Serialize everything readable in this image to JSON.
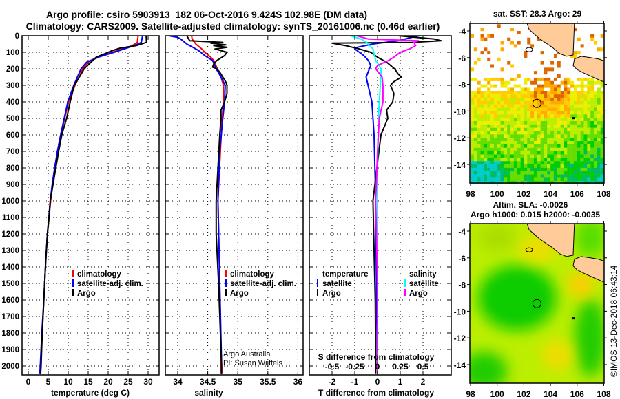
{
  "title": {
    "line1": "Argo profile: csiro 5903913_182 06-Oct-2016 9.424S 102.98E (DM data)",
    "line2": "Climatology: CARS2009. Satellite-adjusted climatology: synTS_20161006.nc (0.46d earlier)"
  },
  "colors": {
    "climatology": "#ff0000",
    "satellite": "#0000ff",
    "argo": "#000000",
    "sal_sat": "#00ffff",
    "sal_argo": "#ff00ff",
    "land": "#ffcc99"
  },
  "credits": {
    "line1": "Argo Australia",
    "line2": "PI: Susan Wijffels",
    "watermark": "©IMOS 13-Dec-2018 06:43:14"
  },
  "chart_data": [
    {
      "type": "line",
      "name": "temperature",
      "xlabel": "temperature (deg C)",
      "ylabel": "",
      "xlim": [
        -1.5,
        32.7
      ],
      "ylim": [
        2045,
        0
      ],
      "xticks": [
        "0",
        "5",
        "10",
        "15",
        "20",
        "25",
        "30"
      ],
      "xtick_values": [
        0,
        5,
        10,
        15,
        20,
        25,
        30
      ],
      "yticks": [
        "0",
        "100",
        "200",
        "300",
        "400",
        "500",
        "600",
        "700",
        "800",
        "900",
        "1000",
        "1100",
        "1200",
        "1300",
        "1400",
        "1500",
        "1600",
        "1700",
        "1800",
        "1900",
        "2000"
      ],
      "legend": [
        "climatology",
        "satellite-adj. clim.",
        "Argo"
      ],
      "series": [
        {
          "name": "climatology",
          "color": "#ff0000",
          "depth": [
            0,
            40,
            60,
            80,
            100,
            130,
            160,
            200,
            250,
            300,
            400,
            500,
            600,
            700,
            800,
            900,
            1000,
            1200,
            1400,
            1600,
            1800,
            2000,
            2045
          ],
          "values": [
            27.5,
            27.3,
            26,
            23.5,
            21,
            17.5,
            15,
            13.6,
            12.7,
            11.7,
            10.1,
            9.1,
            8.2,
            7.4,
            6.7,
            6.1,
            5.6,
            4.8,
            4.3,
            3.9,
            3.5,
            3.1,
            3.0
          ]
        },
        {
          "name": "satellite-adj. clim.",
          "color": "#0000ff",
          "depth": [
            0,
            40,
            60,
            80,
            100,
            130,
            160,
            200,
            250,
            300,
            400,
            500,
            600,
            700,
            800,
            900,
            1000,
            1200,
            1400,
            1600,
            1800,
            2000,
            2045
          ],
          "values": [
            28.6,
            28.3,
            26.5,
            24,
            21.5,
            17.5,
            14.6,
            13.2,
            12.3,
            11.4,
            9.9,
            9.0,
            8.1,
            7.3,
            6.6,
            6.0,
            5.5,
            4.8,
            4.3,
            3.9,
            3.4,
            3.0,
            2.9
          ]
        },
        {
          "name": "Argo",
          "color": "#000000",
          "depth": [
            0,
            40,
            60,
            75,
            90,
            100,
            130,
            170,
            200,
            250,
            300,
            400,
            500,
            600,
            700,
            800,
            900,
            1000,
            1100,
            1200,
            1400,
            1600,
            1800,
            2000,
            2045
          ],
          "values": [
            29.5,
            29.6,
            27,
            23,
            21,
            20,
            17,
            15.3,
            14,
            12.8,
            11.5,
            10.5,
            9.6,
            8.4,
            7.6,
            6.9,
            6.2,
            5.5,
            5.2,
            4.8,
            4.3,
            3.9,
            3.5,
            3.2,
            3.1
          ]
        }
      ]
    },
    {
      "type": "line",
      "name": "salinity",
      "xlabel": "salinity",
      "xlim": [
        33.79,
        36.08
      ],
      "ylim": [
        2045,
        0
      ],
      "xticks": [
        "34",
        "34.5",
        "35",
        "35.5",
        "36"
      ],
      "xtick_values": [
        34,
        34.5,
        35,
        35.5,
        36
      ],
      "legend": [
        "climatology",
        "satellite-adj. clim.",
        "Argo"
      ],
      "series": [
        {
          "name": "climatology",
          "color": "#ff0000",
          "depth": [
            0,
            20,
            50,
            80,
            100,
            130,
            150,
            200,
            250,
            300,
            400,
            500,
            700,
            1000,
            1500,
            2000,
            2045
          ],
          "values": [
            34.23,
            34.24,
            34.3,
            34.4,
            34.45,
            34.55,
            34.6,
            34.66,
            34.72,
            34.76,
            34.76,
            34.74,
            34.71,
            34.67,
            34.7,
            34.72,
            34.72
          ]
        },
        {
          "name": "satellite-adj. clim.",
          "color": "#0000ff",
          "depth": [
            0,
            10,
            20,
            50,
            70,
            90,
            120,
            150,
            200,
            250,
            300,
            400,
            500,
            700,
            1000,
            1500,
            2000,
            2045
          ],
          "values": [
            33.85,
            34.0,
            34.05,
            34.15,
            34.25,
            34.35,
            34.45,
            34.58,
            34.64,
            34.72,
            34.79,
            34.78,
            34.75,
            34.7,
            34.67,
            34.7,
            34.73,
            34.73
          ]
        },
        {
          "name": "Argo",
          "color": "#000000",
          "depth": [
            0,
            30,
            40,
            45,
            55,
            60,
            70,
            80,
            100,
            120,
            150,
            170,
            190,
            200,
            220,
            250,
            280,
            300,
            350,
            400,
            450,
            500,
            600,
            800,
            1000,
            1200,
            1500,
            1800,
            2000,
            2045
          ],
          "values": [
            34.15,
            34.2,
            34.75,
            34.55,
            34.8,
            34.6,
            34.82,
            34.62,
            34.82,
            34.78,
            34.65,
            34.6,
            34.58,
            34.65,
            34.7,
            34.75,
            34.8,
            34.82,
            34.82,
            34.78,
            34.72,
            34.72,
            34.7,
            34.67,
            34.64,
            34.64,
            34.68,
            34.71,
            34.73,
            34.73
          ]
        }
      ]
    },
    {
      "type": "line",
      "name": "difference",
      "xlabel": "T difference from climatology",
      "xlabel2": "S difference from climatology",
      "xlim": [
        -3.0,
        3.2
      ],
      "ylim": [
        2045,
        0
      ],
      "xticks": [
        "-2",
        "-1",
        "0",
        "1",
        "2"
      ],
      "xtick_values": [
        -2,
        -1,
        0,
        1,
        2
      ],
      "xticks2": [
        "-0.5",
        "-0.25",
        "0",
        "0.25",
        "0.5"
      ],
      "xtick2_values": [
        -0.5,
        -0.25,
        0,
        0.25,
        0.5
      ],
      "legend_t": {
        "title": "temperature",
        "items": [
          "satellite",
          "Argo"
        ]
      },
      "legend_s": {
        "title": "salinity",
        "items": [
          "satellite",
          "Argo"
        ]
      },
      "series": [
        {
          "name": "T satellite",
          "color": "#0000ff",
          "depth": [
            0,
            30,
            50,
            70,
            80,
            100,
            120,
            150,
            180,
            250,
            400,
            600,
            1000,
            1500,
            2045
          ],
          "values": [
            1.8,
            0.9,
            -0.2,
            -0.9,
            -1.0,
            -0.8,
            -0.6,
            -0.4,
            -0.3,
            -0.5,
            -0.25,
            -0.15,
            -0.08,
            -0.05,
            0.0
          ]
        },
        {
          "name": "T Argo",
          "color": "#000000",
          "depth": [
            0,
            20,
            30,
            40,
            45,
            60,
            80,
            100,
            130,
            160,
            200,
            230,
            250,
            280,
            300,
            350,
            400,
            450,
            500,
            600,
            700,
            1000,
            1300,
            1600,
            2000,
            2045
          ],
          "values": [
            0.9,
            2.5,
            2.8,
            1.5,
            -2.0,
            -1.4,
            -0.8,
            -0.3,
            0.0,
            0.4,
            0.75,
            0.9,
            1.05,
            0.7,
            0.57,
            0.72,
            0.67,
            0.4,
            0.45,
            0.15,
            0.06,
            -0.2,
            -0.15,
            -0.1,
            -0.08,
            -0.08
          ]
        },
        {
          "name": "S satellite",
          "color": "#00ffff",
          "depth": [
            0,
            20,
            40,
            80,
            150,
            200,
            300,
            500,
            800,
            1200,
            2045
          ],
          "values": [
            -0.3,
            -0.18,
            -0.12,
            -0.05,
            -0.02,
            0.04,
            0.03,
            0.01,
            0.0,
            0.0,
            0.0
          ]
        },
        {
          "name": "S Argo",
          "color": "#ff00ff",
          "depth": [
            0,
            20,
            30,
            40,
            60,
            80,
            100,
            130,
            150,
            180,
            200,
            250,
            300,
            400,
            500,
            700,
            1000,
            1500,
            2045
          ],
          "values": [
            -0.23,
            -0.1,
            0.45,
            0.4,
            0.42,
            0.35,
            0.25,
            0.18,
            0.12,
            0.0,
            -0.02,
            0.05,
            0.06,
            0.06,
            0.02,
            0.0,
            -0.02,
            0.0,
            0.0
          ]
        }
      ]
    },
    {
      "type": "heatmap",
      "name": "sst-map",
      "title": "sat. SST: 28.3 Argo: 29",
      "xlim": [
        98,
        108
      ],
      "ylim": [
        -15.4,
        -3.43
      ],
      "xticks": [
        "98",
        "100",
        "102",
        "104",
        "106",
        "108"
      ],
      "xtick_values": [
        98,
        100,
        102,
        104,
        106,
        108
      ],
      "yticks": [
        "-4",
        "-6",
        "-8",
        "-10",
        "-12",
        "-14"
      ],
      "ytick_values": [
        -4,
        -6,
        -8,
        -10,
        -12,
        -14
      ],
      "marker": {
        "lon": 102.98,
        "lat": -9.424
      }
    },
    {
      "type": "heatmap",
      "name": "sla-map",
      "title": "Altim. SLA: -0.0026",
      "subtitle": "Argo h1000: 0.015 h2000: -0.0035",
      "xlim": [
        98,
        108
      ],
      "ylim": [
        -15.4,
        -3.43
      ],
      "xticks": [
        "98",
        "100",
        "102",
        "104",
        "106",
        "108"
      ],
      "xtick_values": [
        98,
        100,
        102,
        104,
        106,
        108
      ],
      "yticks": [
        "-4",
        "-6",
        "-8",
        "-10",
        "-12",
        "-14"
      ],
      "ytick_values": [
        -4,
        -6,
        -8,
        -10,
        -12,
        -14
      ],
      "marker": {
        "lon": 102.98,
        "lat": -9.424
      }
    }
  ]
}
